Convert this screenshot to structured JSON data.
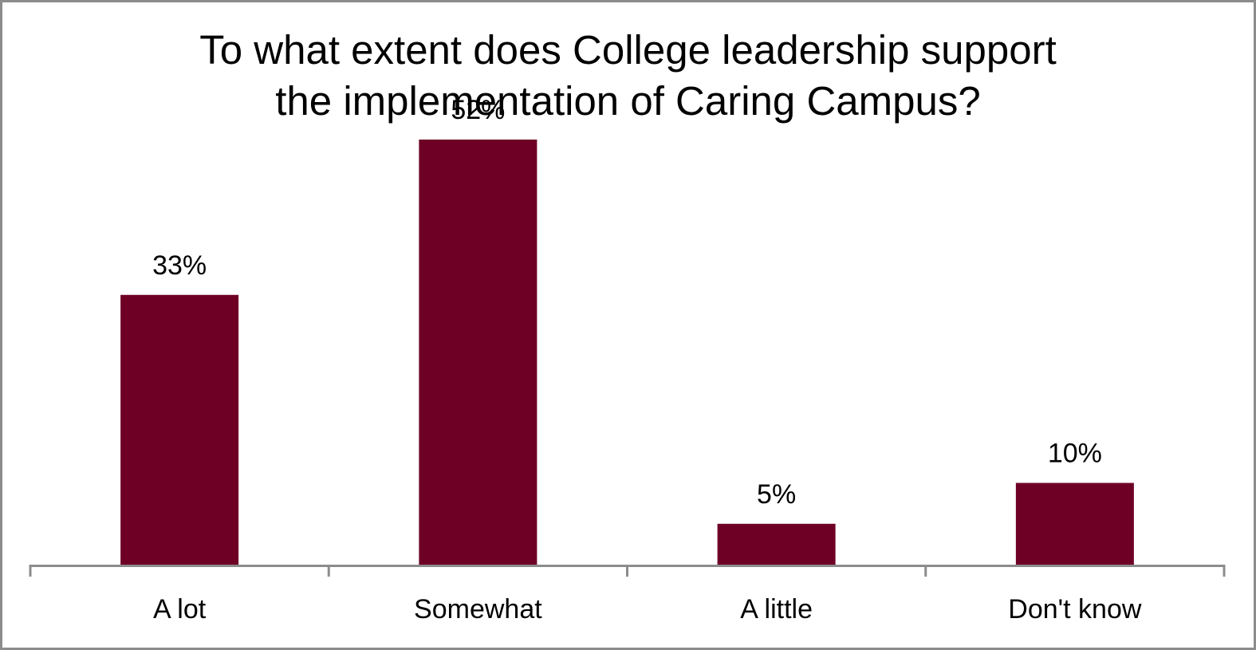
{
  "chart_data": {
    "type": "bar",
    "title": "To what extent does College leadership support the implementation of Caring Campus?",
    "title_lines": [
      "To what extent does College leadership support",
      "the implementation of Caring Campus?"
    ],
    "categories": [
      "A lot",
      "Somewhat",
      "A little",
      "Don't know"
    ],
    "values": [
      33,
      52,
      5,
      10
    ],
    "value_labels": [
      "33%",
      "52%",
      "5%",
      "10%"
    ],
    "xlabel": "",
    "ylabel": "",
    "ylim": [
      0,
      60
    ],
    "grid": false,
    "legend": "none",
    "bar_color": "#6e0025",
    "axis_color": "#8c8c8c"
  }
}
